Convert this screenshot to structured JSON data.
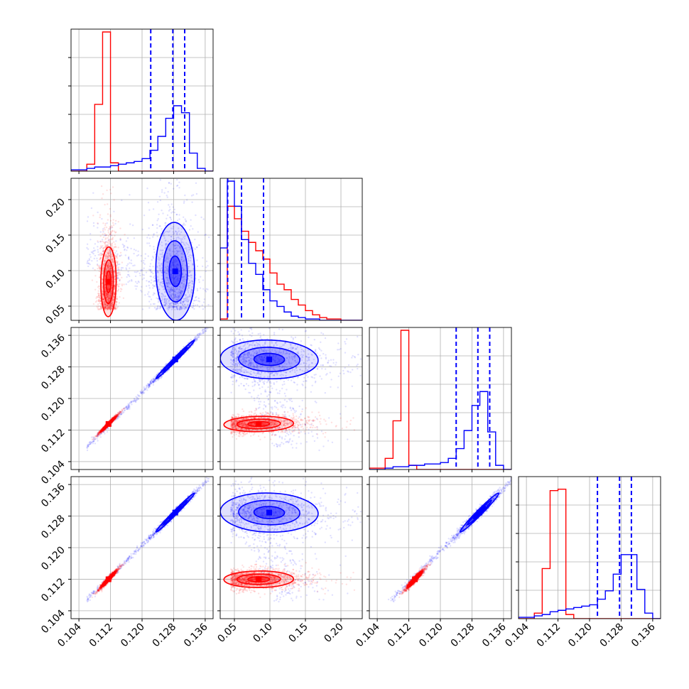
{
  "chart_data": {
    "type": "corner",
    "n_params": 4,
    "colors": {
      "red": "#ff0000",
      "blue": "#0000ff"
    },
    "axes": [
      {
        "range": [
          0.102,
          0.138
        ],
        "ticks": [
          "0.104",
          "0.112",
          "0.120",
          "0.128",
          "0.136"
        ],
        "tick_values": [
          0.104,
          0.112,
          0.12,
          0.128,
          0.136
        ]
      },
      {
        "range": [
          0.03,
          0.23
        ],
        "ticks": [
          "0.05",
          "0.10",
          "0.15",
          "0.20"
        ],
        "tick_values": [
          0.05,
          0.1,
          0.15,
          0.2
        ]
      },
      {
        "range": [
          0.102,
          0.138
        ],
        "ticks": [
          "0.104",
          "0.112",
          "0.120",
          "0.128",
          "0.136"
        ],
        "tick_values": [
          0.104,
          0.112,
          0.12,
          0.128,
          0.136
        ]
      },
      {
        "range": [
          0.102,
          0.138
        ],
        "ticks": [
          "0.104",
          "0.112",
          "0.120",
          "0.128",
          "0.136"
        ],
        "tick_values": [
          0.104,
          0.112,
          0.12,
          0.128,
          0.136
        ]
      }
    ],
    "quantile_lines": [
      [
        0.1222,
        0.1278,
        0.1308
      ],
      [
        0.0405,
        0.06,
        0.091
      ],
      [
        0.124,
        0.1295,
        0.1325
      ],
      [
        0.122,
        0.1276,
        0.1306
      ]
    ],
    "histograms": [
      {
        "bin_edges": [
          0.102,
          0.106,
          0.108,
          0.11,
          0.112,
          0.114,
          0.116,
          0.118,
          0.12,
          0.122,
          0.124,
          0.126,
          0.128,
          0.13,
          0.132,
          0.134,
          0.136,
          0.138
        ],
        "red": [
          0,
          0.05,
          0.48,
          1.0,
          0.06,
          0.0,
          0,
          0,
          0,
          0,
          0,
          0,
          0,
          0,
          0,
          0,
          0
        ],
        "blue": [
          0.01,
          0.02,
          0.03,
          0.03,
          0.04,
          0.05,
          0.06,
          0.07,
          0.09,
          0.15,
          0.25,
          0.38,
          0.47,
          0.42,
          0.13,
          0.02,
          0.0
        ]
      },
      {
        "bin_edges": [
          0.03,
          0.04,
          0.05,
          0.06,
          0.07,
          0.08,
          0.09,
          0.1,
          0.11,
          0.12,
          0.13,
          0.14,
          0.15,
          0.16,
          0.17,
          0.18,
          0.19,
          0.2,
          0.21,
          0.23
        ],
        "red": [
          0.01,
          0.82,
          0.73,
          0.64,
          0.56,
          0.5,
          0.44,
          0.34,
          0.26,
          0.22,
          0.15,
          0.11,
          0.07,
          0.04,
          0.02,
          0.01,
          0.01,
          0.0,
          0.0
        ],
        "blue": [
          0.52,
          1.0,
          0.82,
          0.58,
          0.41,
          0.33,
          0.22,
          0.14,
          0.1,
          0.06,
          0.03,
          0.02,
          0.01,
          0.01,
          0.0,
          0.0,
          0.0,
          0.0,
          0.0
        ]
      },
      {
        "bin_edges": [
          0.102,
          0.106,
          0.108,
          0.11,
          0.112,
          0.114,
          0.116,
          0.118,
          0.12,
          0.122,
          0.124,
          0.126,
          0.128,
          0.13,
          0.132,
          0.134,
          0.136,
          0.138
        ],
        "red": [
          0.01,
          0.08,
          0.35,
          1.0,
          0.03,
          0.0,
          0,
          0,
          0,
          0,
          0,
          0,
          0,
          0,
          0,
          0,
          0
        ],
        "blue": [
          0.0,
          0.01,
          0.02,
          0.02,
          0.03,
          0.03,
          0.04,
          0.04,
          0.05,
          0.08,
          0.15,
          0.28,
          0.46,
          0.56,
          0.27,
          0.03,
          0.0
        ]
      },
      {
        "bin_edges": [
          0.102,
          0.106,
          0.108,
          0.11,
          0.112,
          0.114,
          0.116,
          0.118,
          0.12,
          0.122,
          0.124,
          0.126,
          0.128,
          0.13,
          0.132,
          0.134,
          0.136,
          0.138
        ],
        "red": [
          0,
          0.04,
          0.36,
          0.92,
          0.93,
          0.03,
          0.0,
          0,
          0,
          0,
          0,
          0,
          0,
          0,
          0,
          0,
          0
        ],
        "blue": [
          0.01,
          0.02,
          0.03,
          0.05,
          0.06,
          0.07,
          0.08,
          0.09,
          0.1,
          0.14,
          0.2,
          0.32,
          0.46,
          0.46,
          0.21,
          0.04,
          0.0
        ]
      }
    ],
    "populations": {
      "red": {
        "means": [
          0.1115,
          0.058,
          0.1135,
          0.112
        ],
        "sigmas": [
          0.0012,
          0.028,
          0.0012,
          0.0013
        ],
        "skew_p1": 0.06,
        "corr_02": 0.98,
        "corr_03": 0.97
      },
      "blue": {
        "means": [
          0.1285,
          0.058,
          0.13,
          0.129
        ],
        "sigmas": [
          0.003,
          0.02,
          0.003,
          0.003
        ],
        "tail_p1": 0.13,
        "corr_02": 0.99,
        "corr_03": 0.99
      }
    }
  }
}
